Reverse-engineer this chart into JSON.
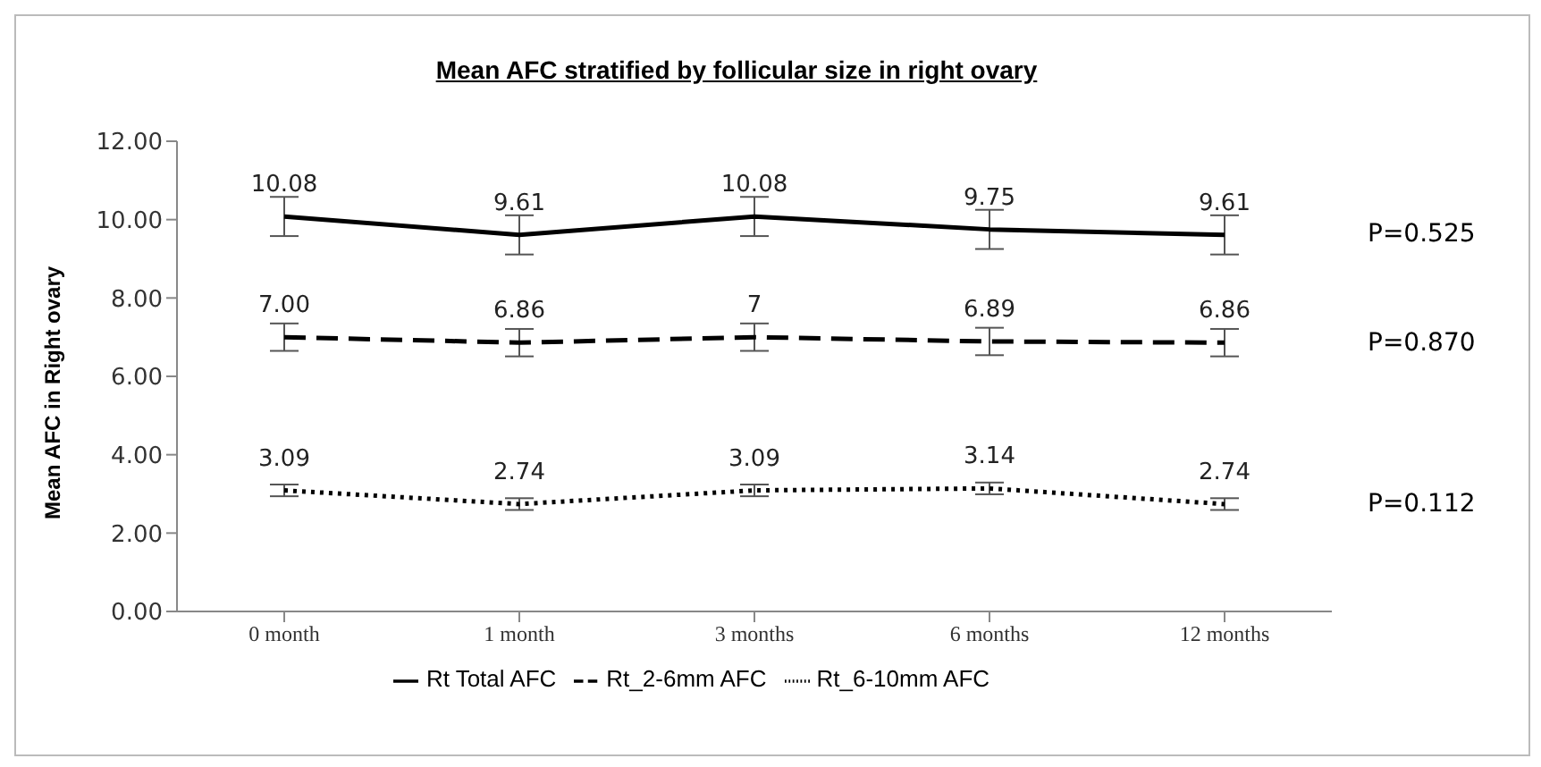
{
  "chart_data": {
    "type": "line",
    "title": "Mean AFC stratified by follicular size in right ovary",
    "ylabel": "Mean AFC in Right ovary",
    "categories": [
      "0 month",
      "1 month",
      "3 months",
      "6 months",
      "12 months"
    ],
    "series": [
      {
        "name": "Rt Total AFC",
        "color": "#000000",
        "line_style": "solid",
        "values": [
          10.08,
          9.61,
          10.08,
          9.75,
          9.61
        ],
        "errors": [
          0.5,
          0.5,
          0.5,
          0.5,
          0.5
        ],
        "value_labels": [
          "10.08",
          "9.61",
          "10.08",
          "9.75",
          "9.61"
        ]
      },
      {
        "name": "Rt_2-6mm AFC",
        "color": "#000000",
        "line_style": "dashed",
        "values": [
          7.0,
          6.86,
          7.0,
          6.89,
          6.86
        ],
        "errors": [
          0.35,
          0.35,
          0.35,
          0.35,
          0.35
        ],
        "value_labels": [
          "7.00",
          "6.86",
          "7",
          "6.89",
          "6.86"
        ]
      },
      {
        "name": "Rt_6-10mm AFC",
        "color": "#000000",
        "line_style": "dotted",
        "values": [
          3.09,
          2.74,
          3.09,
          3.14,
          2.74
        ],
        "errors": [
          0.15,
          0.15,
          0.15,
          0.15,
          0.15
        ],
        "value_labels": [
          "3.09",
          "2.74",
          "3.09",
          "3.14",
          "2.74"
        ]
      }
    ],
    "ylim": [
      0,
      12
    ],
    "yticks": [
      {
        "value": 0,
        "label": "0.00"
      },
      {
        "value": 2,
        "label": "2.00"
      },
      {
        "value": 4,
        "label": "4.00"
      },
      {
        "value": 6,
        "label": "6.00"
      },
      {
        "value": 8,
        "label": "8.00"
      },
      {
        "value": 10,
        "label": "10.00"
      },
      {
        "value": 12,
        "label": "12.00"
      }
    ],
    "annotations": [
      "P=0.525",
      "P=0.870",
      "P=0.112"
    ],
    "grid": false,
    "legend": "bottom"
  }
}
